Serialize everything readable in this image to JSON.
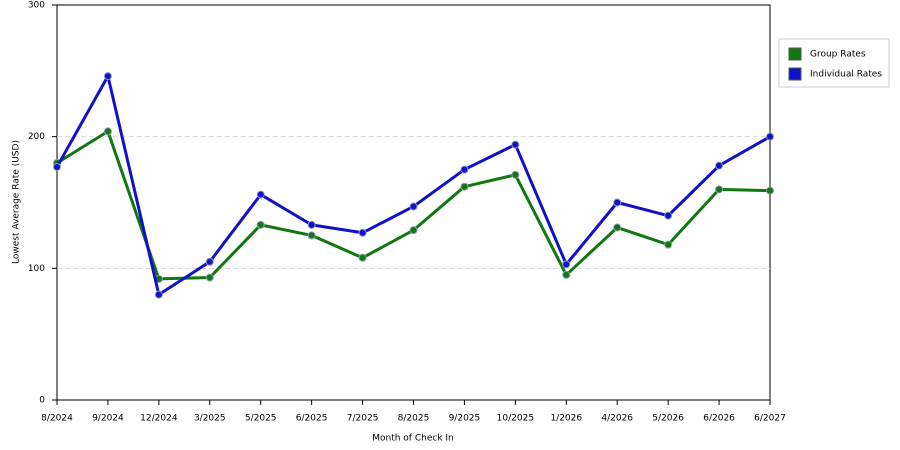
{
  "chart_data": {
    "type": "line",
    "x_label": "Month of Check In",
    "y_label": "Lowest Average Rate (USD)",
    "categories": [
      "8/2024",
      "9/2024",
      "12/2024",
      "3/2025",
      "5/2025",
      "6/2025",
      "7/2025",
      "8/2025",
      "9/2025",
      "10/2025",
      "1/2026",
      "4/2026",
      "5/2026",
      "6/2026",
      "6/2027"
    ],
    "series": [
      {
        "name": "Group Rates",
        "color": "#117711",
        "values": [
          180,
          204,
          92,
          93,
          133,
          125,
          108,
          129,
          162,
          171,
          95,
          131,
          118,
          160,
          159
        ]
      },
      {
        "name": "Individual Rates",
        "color": "#1111cc",
        "values": [
          177,
          246,
          80,
          105,
          156,
          133,
          127,
          147,
          175,
          194,
          103,
          150,
          140,
          178,
          200
        ]
      }
    ],
    "ylim": [
      0,
      300
    ],
    "yticks": [
      0,
      100,
      200,
      300
    ],
    "grid": true,
    "legend": "right"
  }
}
